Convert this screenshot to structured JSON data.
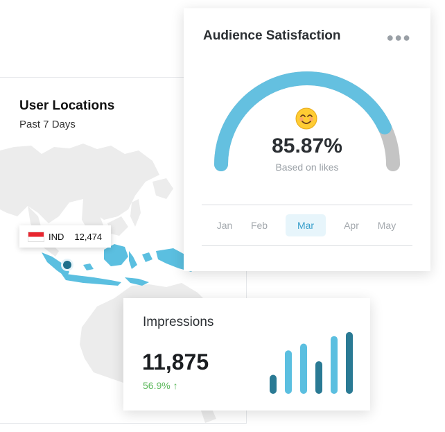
{
  "locations": {
    "title": "User Locations",
    "subtitle": "Past 7 Days",
    "tooltip": {
      "country": "IND",
      "value": "12,474"
    }
  },
  "satisfaction": {
    "title": "Audience Satisfaction",
    "menu_icon": "more-horizontal-icon",
    "emoji": "smiling-face-icon",
    "value": "85.87%",
    "fraction": 0.8587,
    "caption": "Based on likes",
    "months": [
      "Jan",
      "Feb",
      "Mar",
      "Apr",
      "May"
    ],
    "active_month": "Mar",
    "colors": {
      "fill": "#64c0e0",
      "track": "#c4c4c4"
    }
  },
  "impressions": {
    "title": "Impressions",
    "value": "11,875",
    "change": "56.9% ↑",
    "change_color": "#5cb85c",
    "chart_data": {
      "type": "bar",
      "values": [
        28,
        64,
        74,
        48,
        85,
        91
      ],
      "colors": [
        "#2a7a94",
        "#5bbfe0",
        "#5bbfe0",
        "#2a7a94",
        "#5bbfe0",
        "#2a7a94"
      ]
    }
  }
}
